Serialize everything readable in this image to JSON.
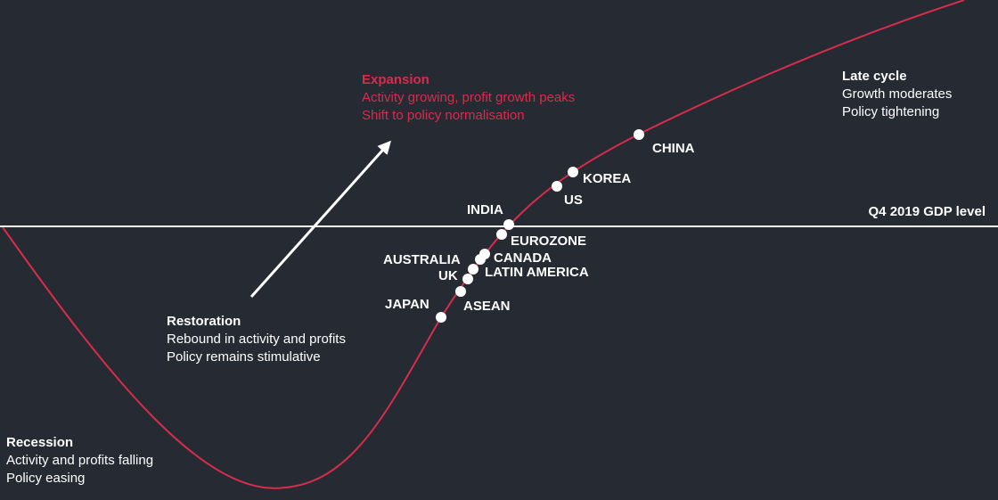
{
  "gdp_line_label": "Q4 2019 GDP level",
  "phases": {
    "expansion": {
      "title": "Expansion",
      "lines": [
        "Activity growing, profit growth peaks",
        "Shift to policy normalisation"
      ]
    },
    "late_cycle": {
      "title": "Late cycle",
      "lines": [
        "Growth moderates",
        "Policy tightening"
      ]
    },
    "restoration": {
      "title": "Restoration",
      "lines": [
        "Rebound in activity and profits",
        "Policy remains stimulative"
      ]
    },
    "recession": {
      "title": "Recession",
      "lines": [
        "Activity and profits falling",
        "Policy easing"
      ]
    }
  },
  "countries": [
    {
      "name": "CHINA"
    },
    {
      "name": "KOREA"
    },
    {
      "name": "US"
    },
    {
      "name": "INDIA"
    },
    {
      "name": "EUROZONE"
    },
    {
      "name": "CANADA"
    },
    {
      "name": "AUSTRALIA"
    },
    {
      "name": "LATIN AMERICA"
    },
    {
      "name": "UK"
    },
    {
      "name": "ASEAN"
    },
    {
      "name": "JAPAN"
    }
  ],
  "colors": {
    "background": "#252a33",
    "curve": "#d62d4b",
    "dot": "#ffffff",
    "gdp_line": "#ffffff",
    "expansion_text": "#d62d4b"
  },
  "icons": {
    "arrow": "arrow-up-right-icon"
  }
}
